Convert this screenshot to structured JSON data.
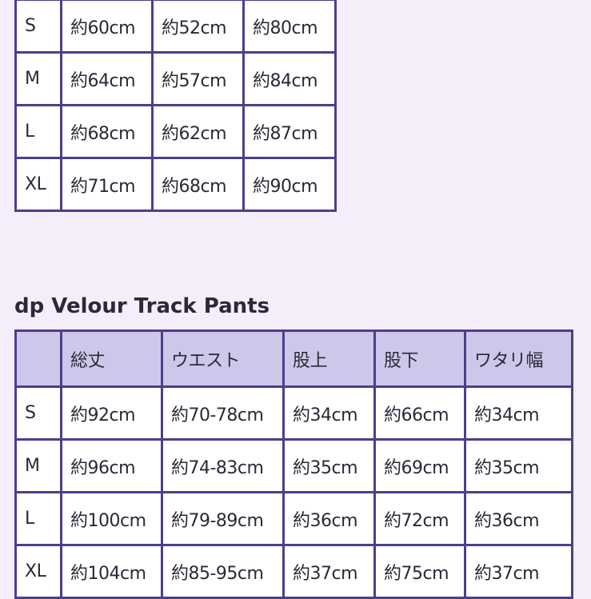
{
  "colors": {
    "border": "#4b3f8c",
    "header_bg": "#cdc8ea",
    "page_bg": "#f4eefb"
  },
  "table1": {
    "rows": [
      [
        "S",
        "約60cm",
        "約52cm",
        "約80cm"
      ],
      [
        "M",
        "約64cm",
        "約57cm",
        "約84cm"
      ],
      [
        "L",
        "約68cm",
        "約62cm",
        "約87cm"
      ],
      [
        "XL",
        "約71cm",
        "約68cm",
        "約90cm"
      ]
    ]
  },
  "section2": {
    "title": "dp Velour Track Pants"
  },
  "table2": {
    "headers": [
      "",
      "総丈",
      "ウエスト",
      "股上",
      "股下",
      "ワタリ幅"
    ],
    "rows": [
      [
        "S",
        "約92cm",
        "約70-78cm",
        "約34cm",
        "約66cm",
        "約34cm"
      ],
      [
        "M",
        "約96cm",
        "約74-83cm",
        "約35cm",
        "約69cm",
        "約35cm"
      ],
      [
        "L",
        "約100cm",
        "約79-89cm",
        "約36cm",
        "約72cm",
        "約36cm"
      ],
      [
        "XL",
        "約104cm",
        "約85-95cm",
        "約37cm",
        "約75cm",
        "約37cm"
      ]
    ]
  }
}
